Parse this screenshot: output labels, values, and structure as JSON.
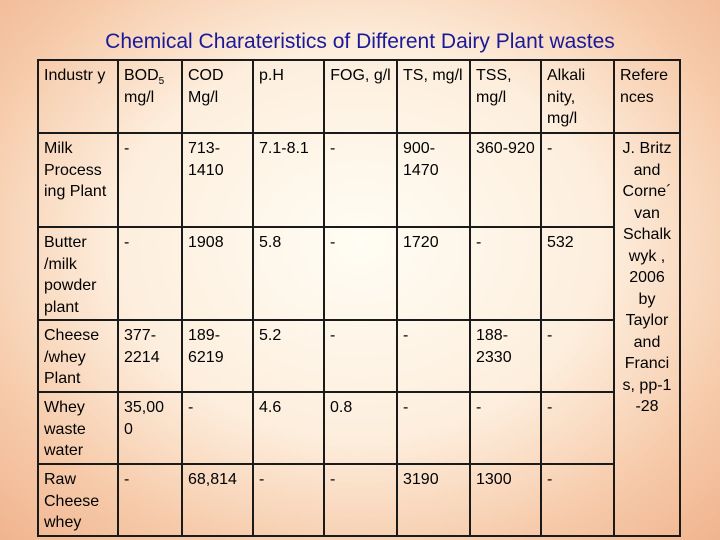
{
  "title": "Chemical Charateristics of Different Dairy Plant wastes",
  "headers": {
    "industry": "Industr y",
    "bod": "BOD",
    "bod_sub": "5",
    "bod_unit": "mg/l",
    "cod": "COD Mg/l",
    "ph": "p.H",
    "fog": "FOG, g/l",
    "ts": "TS, mg/l",
    "tss": "TSS, mg/l",
    "alkalinity": "Alkali nity, mg/l",
    "references": "Refere nces"
  },
  "rows": [
    {
      "industry": "Milk Process ing Plant",
      "bod": "-",
      "cod": "713-1410",
      "ph": "7.1-8.1",
      "fog": "-",
      "ts": "900-1470",
      "tss": "360-920",
      "alkalinity": "-"
    },
    {
      "industry": "Butter /milk powder plant",
      "bod": "-",
      "cod": "1908",
      "ph": "5.8",
      "fog": "-",
      "ts": "1720",
      "tss": "-",
      "alkalinity": "532"
    },
    {
      "industry": "Cheese /whey Plant",
      "bod": "377-2214",
      "cod": "189-6219",
      "ph": "5.2",
      "fog": "-",
      "ts": "-",
      "tss": "188-2330",
      "alkalinity": "-"
    },
    {
      "industry": "Whey waste water",
      "bod": "35,00 0",
      "cod": "-",
      "ph": "4.6",
      "fog": "0.8",
      "ts": "-",
      "tss": "-",
      "alkalinity": "-"
    },
    {
      "industry": "Raw Cheese whey",
      "bod": "-",
      "cod": "68,814",
      "ph": "-",
      "fog": "-",
      "ts": "3190",
      "tss": "1300",
      "alkalinity": "-"
    }
  ],
  "reference_text": "J. Britz and Corne´ van Schalk wyk , 2006 by Taylor and Franci s, pp-1 -28"
}
